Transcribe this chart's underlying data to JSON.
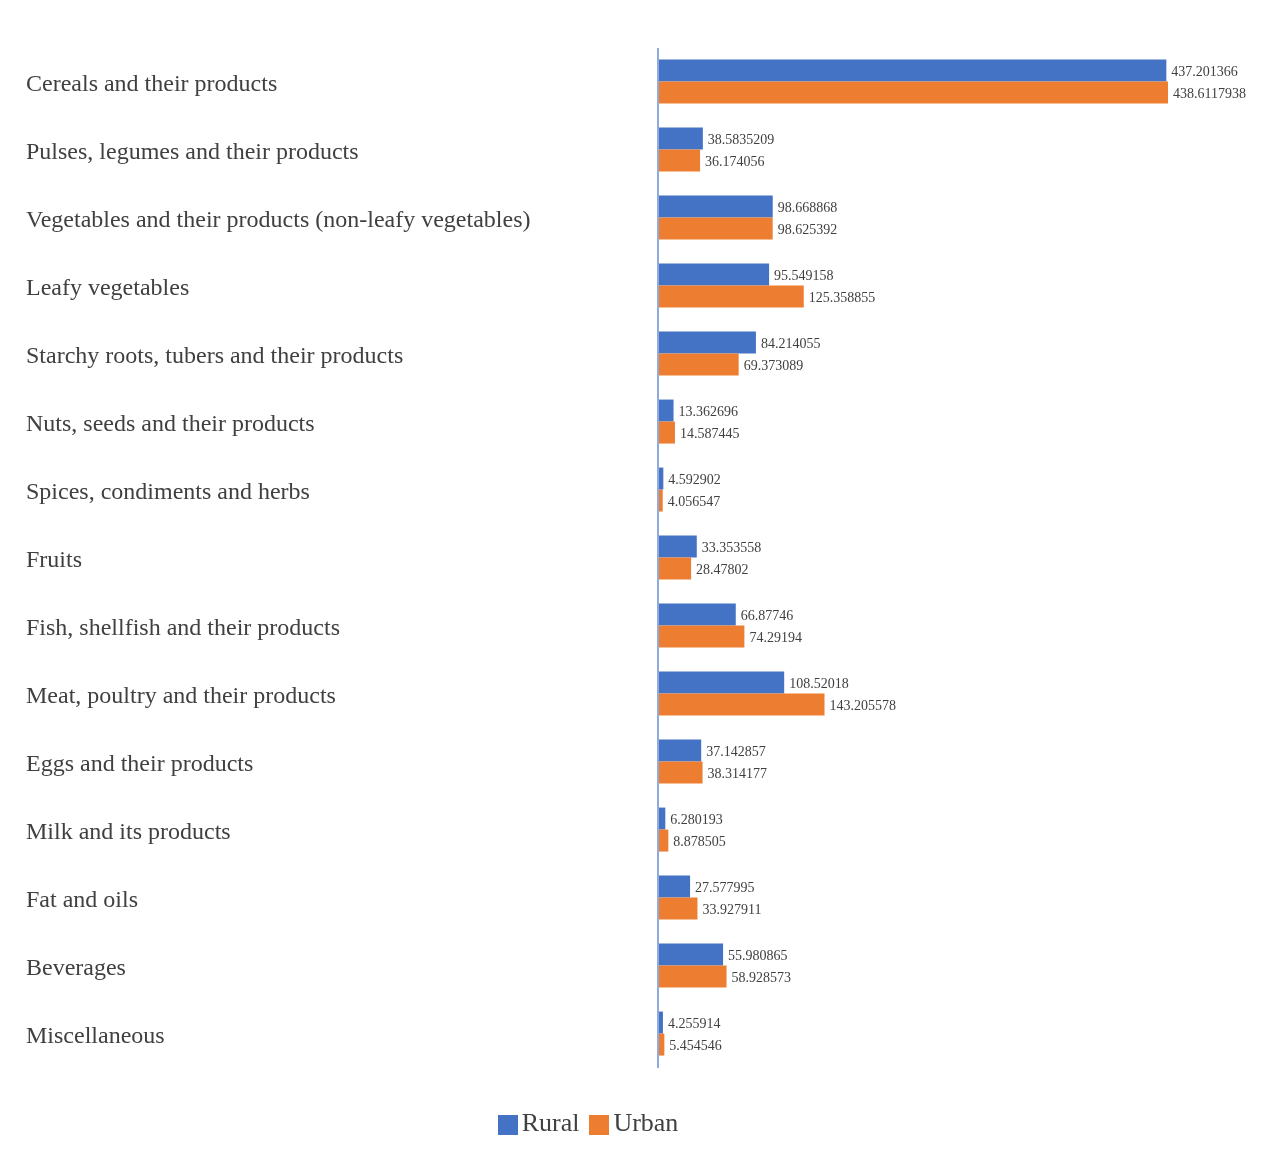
{
  "chart_data": {
    "type": "bar",
    "orientation": "horizontal",
    "categories": [
      "Cereals and their products",
      "Pulses, legumes and their products",
      "Vegetables and their products (non-leafy vegetables)",
      "Leafy vegetables",
      "Starchy roots, tubers and their products",
      "Nuts, seeds and their products",
      "Spices, condiments and herbs",
      "Fruits",
      "Fish, shellfish and their products",
      "Meat, poultry and their products",
      "Eggs and their products",
      "Milk and its products",
      "Fat and oils",
      "Beverages",
      "Miscellaneous"
    ],
    "series": [
      {
        "name": "Rural",
        "color": "#4472c4",
        "values": [
          437.201366,
          38.5835209,
          98.668868,
          95.549158,
          84.214055,
          13.362696,
          4.592902,
          33.353558,
          66.87746,
          108.52018,
          37.142857,
          6.280193,
          27.577995,
          55.980865,
          4.255914
        ]
      },
      {
        "name": "Urban",
        "color": "#ed7d31",
        "values": [
          438.6117938,
          36.174056,
          98.625392,
          125.358855,
          69.373089,
          14.587445,
          4.056547,
          28.47802,
          74.29194,
          143.205578,
          38.314177,
          8.878505,
          33.927911,
          58.928573,
          5.454546
        ]
      }
    ],
    "data_labels": true,
    "grid": false,
    "legend": "bottom"
  }
}
